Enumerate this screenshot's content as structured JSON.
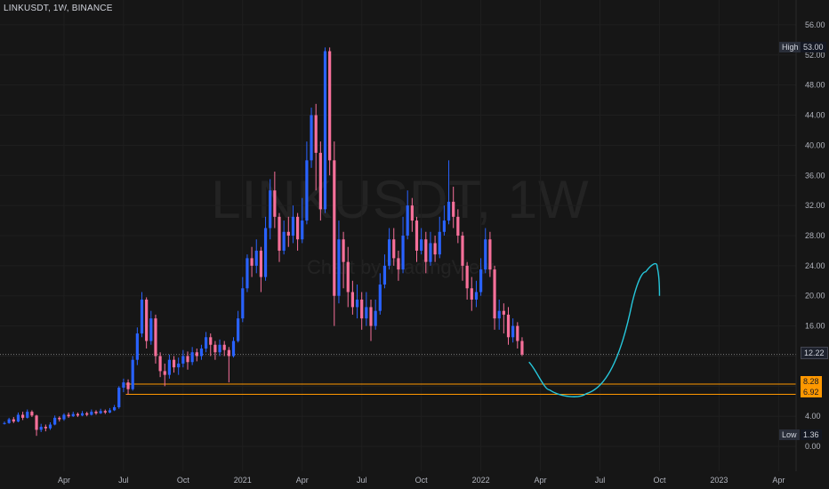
{
  "header": {
    "title": "LINKUSDT, 1W, BINANCE"
  },
  "watermark": {
    "symbol": "LINKUSDT, 1W",
    "source": "Chart by TradingView"
  },
  "price_tags": {
    "high_label": "High",
    "high_value": "53.00",
    "low_label": "Low",
    "low_value": "1.36",
    "last_value": "12.22",
    "level1_value": "8.28",
    "level2_value": "6.92"
  },
  "colors": {
    "background": "#161616",
    "bull": "#2962ff",
    "bear": "#f7709a",
    "level_line": "#ff9800",
    "projection": "#26c6da",
    "grid": "#1f1f1f"
  },
  "chart_data": {
    "type": "candlestick",
    "title": "LINKUSDT, 1W, BINANCE",
    "ylim": [
      -2,
      58
    ],
    "y_ticks": [
      "0.00",
      "4.00",
      "8.00",
      "12.00",
      "16.00",
      "20.00",
      "24.00",
      "28.00",
      "32.00",
      "36.00",
      "40.00",
      "44.00",
      "48.00",
      "52.00",
      "56.00"
    ],
    "y_tick_values": [
      0,
      4,
      8,
      12,
      16,
      20,
      24,
      28,
      32,
      36,
      40,
      44,
      48,
      52,
      56
    ],
    "x_ticks": [
      "Apr",
      "Jul",
      "Oct",
      "2021",
      "Apr",
      "Jul",
      "Oct",
      "2022",
      "Apr",
      "Jul",
      "Oct",
      "2023",
      "Apr"
    ],
    "x_tick_week_index": [
      13,
      26,
      39,
      52,
      65,
      78,
      91,
      104,
      117,
      130,
      143,
      156,
      169
    ],
    "high": 53.0,
    "low": 1.36,
    "last": 12.22,
    "horizontal_levels": [
      8.28,
      6.92
    ],
    "candles": [
      [
        3.0,
        3.1,
        2.9,
        3.3
      ],
      [
        3.1,
        3.6,
        3.0,
        3.8
      ],
      [
        3.6,
        3.3,
        3.1,
        3.9
      ],
      [
        3.3,
        4.2,
        3.2,
        4.5
      ],
      [
        4.2,
        3.8,
        3.5,
        4.6
      ],
      [
        3.8,
        4.6,
        3.7,
        4.9
      ],
      [
        4.6,
        4.1,
        3.9,
        4.8
      ],
      [
        4.1,
        2.2,
        1.4,
        4.2
      ],
      [
        2.2,
        2.6,
        1.9,
        3.0
      ],
      [
        2.6,
        2.4,
        2.0,
        2.9
      ],
      [
        2.4,
        2.9,
        2.2,
        3.2
      ],
      [
        2.9,
        3.8,
        2.8,
        4.1
      ],
      [
        3.8,
        3.6,
        3.3,
        4.0
      ],
      [
        3.6,
        4.2,
        3.4,
        4.4
      ],
      [
        4.2,
        4.0,
        3.8,
        4.5
      ],
      [
        4.0,
        4.3,
        3.9,
        4.6
      ],
      [
        4.3,
        4.1,
        3.9,
        4.5
      ],
      [
        4.1,
        4.4,
        4.0,
        4.7
      ],
      [
        4.4,
        4.2,
        4.0,
        4.6
      ],
      [
        4.2,
        4.6,
        4.1,
        4.9
      ],
      [
        4.6,
        4.4,
        4.2,
        4.8
      ],
      [
        4.4,
        4.7,
        4.3,
        5.0
      ],
      [
        4.7,
        4.5,
        4.3,
        4.9
      ],
      [
        4.5,
        4.8,
        4.4,
        5.1
      ],
      [
        4.8,
        5.2,
        4.7,
        5.5
      ],
      [
        5.2,
        7.8,
        5.0,
        8.0
      ],
      [
        7.8,
        8.5,
        7.2,
        9.0
      ],
      [
        8.5,
        7.6,
        6.9,
        8.9
      ],
      [
        7.6,
        11.5,
        7.4,
        12.0
      ],
      [
        11.5,
        15.0,
        10.8,
        15.8
      ],
      [
        15.0,
        19.5,
        14.5,
        20.5
      ],
      [
        19.5,
        14.0,
        13.0,
        19.8
      ],
      [
        14.0,
        17.0,
        13.5,
        18.0
      ],
      [
        17.0,
        12.0,
        11.0,
        17.5
      ],
      [
        12.0,
        10.0,
        9.2,
        12.5
      ],
      [
        10.0,
        9.5,
        8.0,
        11.0
      ],
      [
        9.5,
        11.5,
        9.0,
        12.2
      ],
      [
        11.5,
        10.5,
        9.8,
        12.0
      ],
      [
        10.5,
        11.0,
        9.5,
        11.8
      ],
      [
        11.0,
        12.0,
        10.5,
        12.8
      ],
      [
        12.0,
        11.2,
        10.2,
        12.6
      ],
      [
        11.2,
        12.5,
        10.8,
        13.2
      ],
      [
        12.5,
        12.0,
        11.3,
        13.0
      ],
      [
        12.0,
        13.0,
        11.5,
        13.5
      ],
      [
        13.0,
        14.5,
        12.5,
        15.2
      ],
      [
        14.5,
        13.5,
        12.0,
        15.0
      ],
      [
        13.5,
        12.5,
        11.5,
        14.0
      ],
      [
        12.5,
        13.5,
        12.0,
        14.2
      ],
      [
        13.5,
        12.8,
        12.0,
        14.0
      ],
      [
        12.8,
        12.0,
        8.5,
        13.2
      ],
      [
        12.0,
        14.0,
        11.8,
        14.5
      ],
      [
        14.0,
        17.0,
        13.8,
        18.0
      ],
      [
        17.0,
        21.0,
        16.5,
        22.5
      ],
      [
        21.0,
        25.0,
        20.5,
        25.5
      ],
      [
        25.0,
        24.0,
        22.5,
        26.5
      ],
      [
        24.0,
        26.0,
        23.0,
        27.5
      ],
      [
        26.0,
        22.5,
        20.5,
        26.5
      ],
      [
        22.5,
        29.0,
        22.0,
        30.5
      ],
      [
        29.0,
        34.0,
        27.5,
        35.5
      ],
      [
        34.0,
        30.5,
        29.0,
        36.5
      ],
      [
        30.5,
        26.0,
        24.5,
        31.0
      ],
      [
        26.0,
        28.5,
        25.5,
        30.0
      ],
      [
        28.5,
        28.0,
        26.5,
        30.5
      ],
      [
        28.0,
        30.5,
        27.0,
        32.0
      ],
      [
        30.5,
        27.5,
        26.0,
        31.0
      ],
      [
        27.5,
        30.0,
        27.0,
        33.0
      ],
      [
        30.0,
        38.0,
        29.5,
        40.5
      ],
      [
        38.0,
        44.0,
        37.0,
        45.0
      ],
      [
        44.0,
        39.0,
        34.0,
        45.5
      ],
      [
        39.0,
        31.5,
        30.0,
        40.5
      ],
      [
        31.5,
        52.5,
        31.0,
        53.0
      ],
      [
        52.5,
        38.0,
        36.0,
        53.0
      ],
      [
        38.0,
        20.0,
        16.0,
        40.5
      ],
      [
        20.0,
        27.5,
        19.0,
        30.0
      ],
      [
        27.5,
        24.5,
        21.0,
        28.5
      ],
      [
        24.5,
        20.5,
        18.5,
        26.5
      ],
      [
        20.5,
        18.5,
        17.5,
        22.0
      ],
      [
        18.5,
        19.5,
        17.0,
        21.5
      ],
      [
        19.5,
        17.0,
        15.5,
        20.5
      ],
      [
        17.0,
        18.5,
        16.0,
        20.5
      ],
      [
        18.5,
        16.0,
        14.0,
        19.5
      ],
      [
        16.0,
        18.0,
        15.5,
        19.5
      ],
      [
        18.0,
        21.5,
        17.5,
        23.0
      ],
      [
        21.5,
        24.0,
        21.0,
        25.5
      ],
      [
        24.0,
        27.5,
        23.5,
        29.0
      ],
      [
        27.5,
        25.0,
        24.0,
        29.0
      ],
      [
        25.0,
        23.5,
        22.0,
        26.0
      ],
      [
        23.5,
        28.0,
        23.0,
        30.5
      ],
      [
        28.0,
        32.0,
        27.5,
        34.0
      ],
      [
        32.0,
        30.0,
        28.5,
        33.0
      ],
      [
        30.0,
        26.0,
        24.5,
        30.5
      ],
      [
        26.0,
        27.5,
        25.5,
        29.0
      ],
      [
        27.5,
        24.5,
        23.0,
        28.5
      ],
      [
        24.5,
        27.0,
        24.0,
        28.5
      ],
      [
        27.0,
        25.5,
        24.5,
        28.0
      ],
      [
        25.5,
        28.5,
        25.0,
        30.5
      ],
      [
        28.5,
        30.0,
        28.0,
        32.0
      ],
      [
        30.0,
        32.5,
        29.5,
        38.0
      ],
      [
        32.5,
        30.5,
        29.0,
        34.5
      ],
      [
        30.5,
        28.0,
        27.0,
        31.5
      ],
      [
        28.0,
        24.0,
        22.0,
        28.5
      ],
      [
        24.0,
        21.0,
        19.5,
        24.5
      ],
      [
        21.0,
        19.5,
        18.0,
        22.5
      ],
      [
        19.5,
        20.5,
        18.5,
        22.0
      ],
      [
        20.5,
        23.5,
        20.0,
        25.0
      ],
      [
        23.5,
        27.5,
        23.0,
        29.0
      ],
      [
        27.5,
        23.5,
        22.5,
        28.5
      ],
      [
        23.5,
        17.0,
        15.5,
        24.0
      ],
      [
        17.0,
        18.0,
        15.5,
        19.5
      ],
      [
        18.0,
        17.5,
        15.0,
        19.0
      ],
      [
        17.5,
        14.5,
        13.5,
        18.5
      ],
      [
        14.5,
        16.0,
        13.8,
        17.0
      ],
      [
        16.0,
        14.0,
        13.0,
        16.5
      ],
      [
        14.0,
        12.2,
        12.0,
        14.5
      ]
    ],
    "annotations": [
      "projected rebound curve (hand-drawn)"
    ]
  }
}
